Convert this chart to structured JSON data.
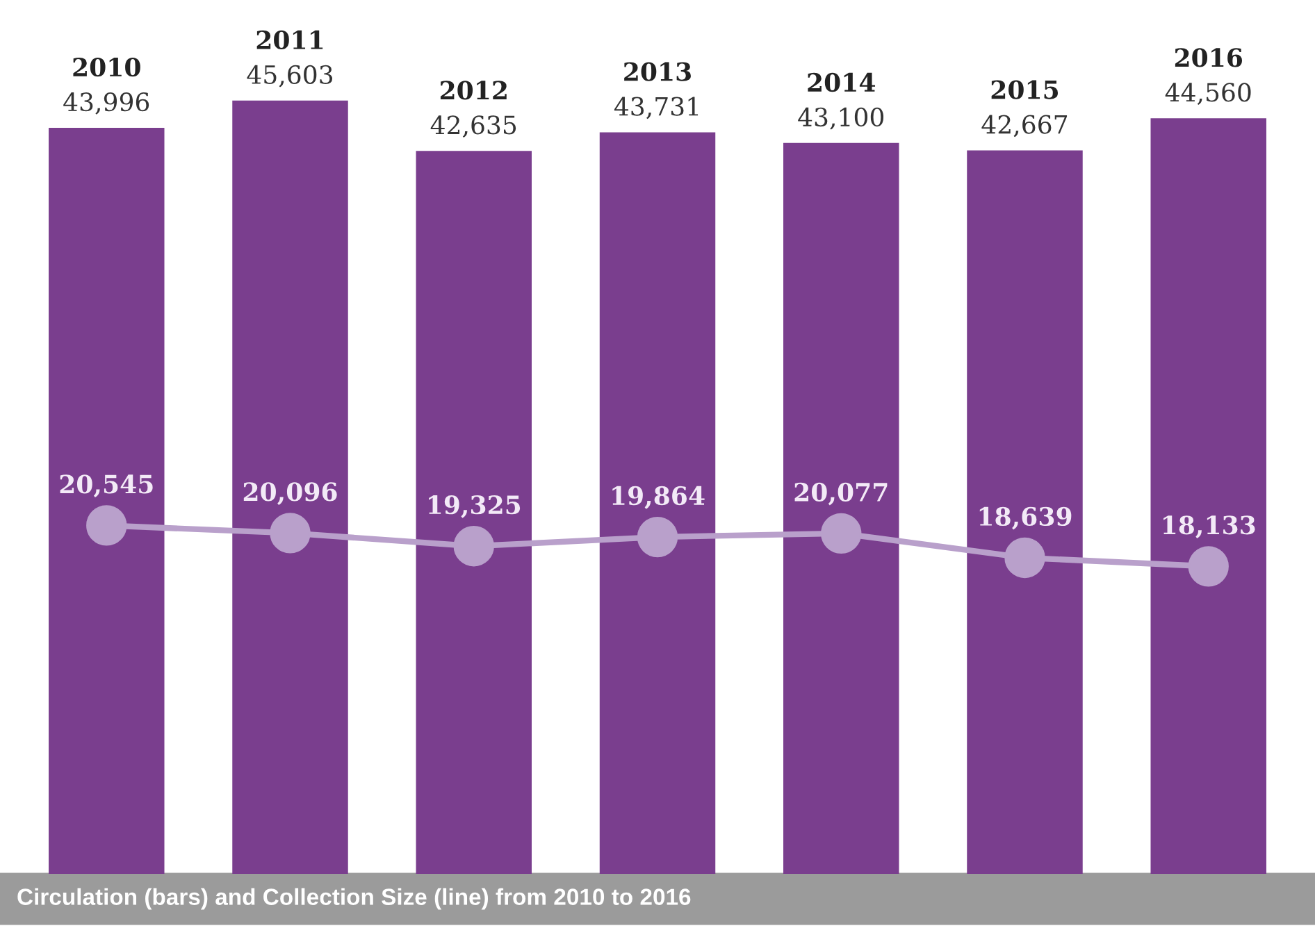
{
  "chart_data": {
    "type": "bar",
    "categories": [
      "2010",
      "2011",
      "2012",
      "2013",
      "2014",
      "2015",
      "2016"
    ],
    "series": [
      {
        "color": "#7a3e8e",
        "values": [
          43996,
          45603,
          42635,
          43731,
          43100,
          42667,
          44560
        ],
        "value_labels": [
          "43,996",
          "45,603",
          "42,635",
          "43,731",
          "43,100",
          "42,667",
          "44,560"
        ]
      },
      {
        "type": "line",
        "color": "#b9a0cb",
        "values": [
          20545,
          20096,
          19325,
          19864,
          20077,
          18639,
          18133
        ],
        "value_labels": [
          "20,545",
          "20,096",
          "19,325",
          "19,864",
          "20,077",
          "18,639",
          "18,133"
        ]
      }
    ],
    "marker": "circle",
    "line_style": "solid",
    "annotations": [
      "Circulation (bars) and Collection Size (line) from 2010 to 2016"
    ]
  }
}
